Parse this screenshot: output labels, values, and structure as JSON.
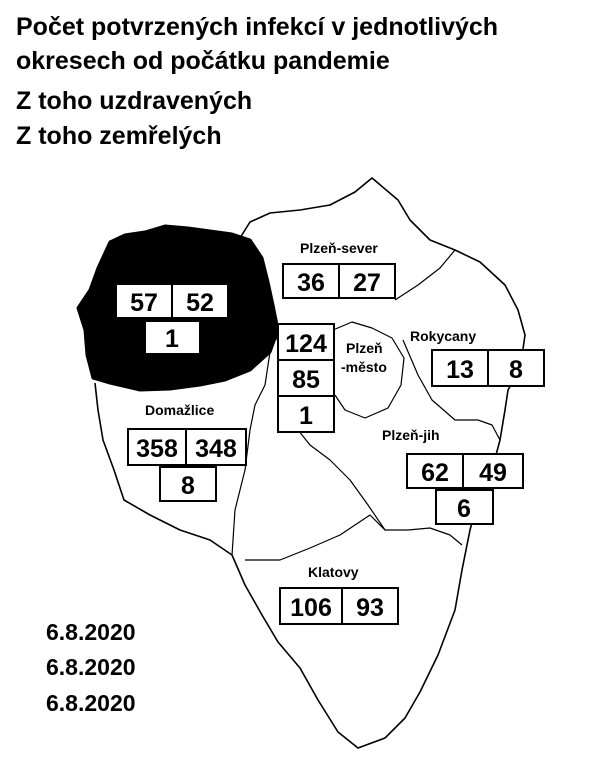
{
  "title": {
    "line1": "Počet potvrzených infekcí v jednotlivých",
    "line2": "okresech od počátku pandemie",
    "line3": "Z toho uzdravených",
    "line4": "Z toho zemřelých"
  },
  "districts": {
    "tachov": {
      "label": "",
      "infected": "57",
      "recovered": "52",
      "deaths": "1"
    },
    "sever": {
      "label": "Plzeň-sever",
      "infected": "36",
      "recovered": "27"
    },
    "mesto": {
      "label1": "Plzeň",
      "label2": "-město",
      "infected": "124",
      "recovered": "85",
      "deaths": "1"
    },
    "rokycany": {
      "label": "Rokycany",
      "infected": "13",
      "recovered": "8"
    },
    "domazlice": {
      "label": "Domažlice",
      "infected": "358",
      "recovered": "348",
      "deaths": "8"
    },
    "jih": {
      "label": "Plzeň-jih",
      "infected": "62",
      "recovered": "49",
      "deaths": "6"
    },
    "klatovy": {
      "label": "Klatovy",
      "infected": "106",
      "recovered": "93"
    }
  },
  "dates": {
    "infected": "6.8.2020",
    "recovered": "6.8.2020",
    "deaths": "6.8.2020"
  },
  "colors": {
    "filled_district": "#000000",
    "background": "#ffffff",
    "outline": "#000000"
  }
}
